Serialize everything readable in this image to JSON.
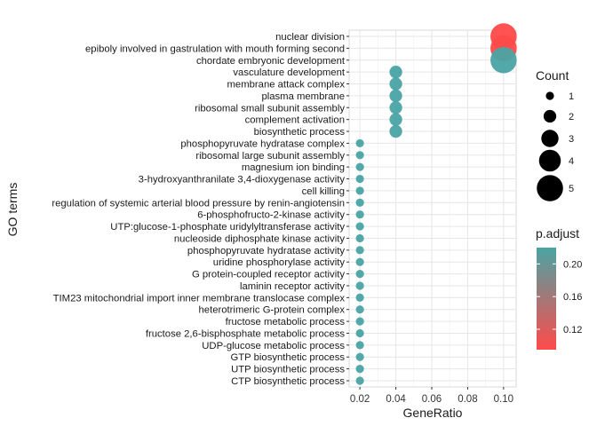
{
  "chart_data": {
    "type": "scatter",
    "xlabel": "GeneRatio",
    "ylabel": "GO terms",
    "xlim": [
      0.014,
      0.107
    ],
    "x_ticks": [
      0.02,
      0.04,
      0.06,
      0.08,
      0.1
    ],
    "x_tick_labels": [
      "0.02",
      "0.04",
      "0.06",
      "0.08",
      "0.10"
    ],
    "grid": true,
    "legend_position": "right",
    "colors": {
      "low_padj": "#ff4a4a",
      "high_padj": "#4aa4a4",
      "grid": "#e6e6e6",
      "panel_border": "#d9d9d9"
    },
    "terms": [
      "nuclear division",
      "epiboly involved in gastrulation with mouth forming second",
      "chordate embryonic development",
      "vasculature development",
      "membrane attack complex",
      "plasma membrane",
      "ribosomal small subunit assembly",
      "complement activation",
      "biosynthetic process",
      "phosphopyruvate hydratase complex",
      "ribosomal large subunit assembly",
      "magnesium ion binding",
      "3-hydroxyanthranilate 3,4-dioxygenase activity",
      "cell killing",
      "regulation of systemic arterial blood pressure by renin-angiotensin",
      "6-phosphofructo-2-kinase activity",
      "UTP:glucose-1-phosphate uridylyltransferase activity",
      "nucleoside diphosphate kinase activity",
      "phosphopyruvate hydratase activity",
      "uridine phosphorylase activity",
      "G protein-coupled receptor activity",
      "laminin receptor activity",
      "TIM23 mitochondrial import inner membrane translocase complex",
      "heterotrimeric G-protein complex",
      "fructose metabolic process",
      "fructose 2,6-bisphosphate metabolic process",
      "UDP-glucose metabolic process",
      "GTP biosynthetic process",
      "UTP biosynthetic process",
      "CTP biosynthetic process"
    ],
    "points": [
      {
        "term": "nuclear division",
        "x": 0.1,
        "count": 5,
        "p_adjust": 0.095
      },
      {
        "term": "epiboly involved in gastrulation with mouth forming second",
        "x": 0.1,
        "count": 5,
        "p_adjust": 0.095
      },
      {
        "term": "chordate embryonic development",
        "x": 0.1,
        "count": 5,
        "p_adjust": 0.22
      },
      {
        "term": "vasculature development",
        "x": 0.04,
        "count": 2,
        "p_adjust": 0.22
      },
      {
        "term": "membrane attack complex",
        "x": 0.04,
        "count": 2,
        "p_adjust": 0.22
      },
      {
        "term": "plasma membrane",
        "x": 0.04,
        "count": 2,
        "p_adjust": 0.22
      },
      {
        "term": "ribosomal small subunit assembly",
        "x": 0.04,
        "count": 2,
        "p_adjust": 0.22
      },
      {
        "term": "complement activation",
        "x": 0.04,
        "count": 2,
        "p_adjust": 0.22
      },
      {
        "term": "biosynthetic process",
        "x": 0.04,
        "count": 2,
        "p_adjust": 0.22
      },
      {
        "term": "phosphopyruvate hydratase complex",
        "x": 0.02,
        "count": 1,
        "p_adjust": 0.22
      },
      {
        "term": "ribosomal large subunit assembly",
        "x": 0.02,
        "count": 1,
        "p_adjust": 0.22
      },
      {
        "term": "magnesium ion binding",
        "x": 0.02,
        "count": 1,
        "p_adjust": 0.22
      },
      {
        "term": "3-hydroxyanthranilate 3,4-dioxygenase activity",
        "x": 0.02,
        "count": 1,
        "p_adjust": 0.22
      },
      {
        "term": "cell killing",
        "x": 0.02,
        "count": 1,
        "p_adjust": 0.22
      },
      {
        "term": "regulation of systemic arterial blood pressure by renin-angiotensin",
        "x": 0.02,
        "count": 1,
        "p_adjust": 0.22
      },
      {
        "term": "6-phosphofructo-2-kinase activity",
        "x": 0.02,
        "count": 1,
        "p_adjust": 0.22
      },
      {
        "term": "UTP:glucose-1-phosphate uridylyltransferase activity",
        "x": 0.02,
        "count": 1,
        "p_adjust": 0.22
      },
      {
        "term": "nucleoside diphosphate kinase activity",
        "x": 0.02,
        "count": 1,
        "p_adjust": 0.22
      },
      {
        "term": "phosphopyruvate hydratase activity",
        "x": 0.02,
        "count": 1,
        "p_adjust": 0.22
      },
      {
        "term": "uridine phosphorylase activity",
        "x": 0.02,
        "count": 1,
        "p_adjust": 0.22
      },
      {
        "term": "G protein-coupled receptor activity",
        "x": 0.02,
        "count": 1,
        "p_adjust": 0.22
      },
      {
        "term": "laminin receptor activity",
        "x": 0.02,
        "count": 1,
        "p_adjust": 0.22
      },
      {
        "term": "TIM23 mitochondrial import inner membrane translocase complex",
        "x": 0.02,
        "count": 1,
        "p_adjust": 0.22
      },
      {
        "term": "heterotrimeric G-protein complex",
        "x": 0.02,
        "count": 1,
        "p_adjust": 0.22
      },
      {
        "term": "fructose metabolic process",
        "x": 0.02,
        "count": 1,
        "p_adjust": 0.22
      },
      {
        "term": "fructose 2,6-bisphosphate metabolic process",
        "x": 0.02,
        "count": 1,
        "p_adjust": 0.22
      },
      {
        "term": "UDP-glucose metabolic process",
        "x": 0.02,
        "count": 1,
        "p_adjust": 0.22
      },
      {
        "term": "GTP biosynthetic process",
        "x": 0.02,
        "count": 1,
        "p_adjust": 0.22
      },
      {
        "term": "UTP biosynthetic process",
        "x": 0.02,
        "count": 1,
        "p_adjust": 0.22
      },
      {
        "term": "CTP biosynthetic process",
        "x": 0.02,
        "count": 1,
        "p_adjust": 0.22
      }
    ],
    "legend_count": {
      "title": "Count",
      "values": [
        1,
        2,
        3,
        4,
        5
      ],
      "labels": [
        "1",
        "2",
        "3",
        "4",
        "5"
      ]
    },
    "legend_padjust": {
      "title": "p.adjust",
      "range": [
        0.095,
        0.22
      ],
      "ticks": [
        0.12,
        0.16,
        0.2
      ],
      "tick_labels": [
        "0.12",
        "0.16",
        "0.20"
      ]
    }
  }
}
